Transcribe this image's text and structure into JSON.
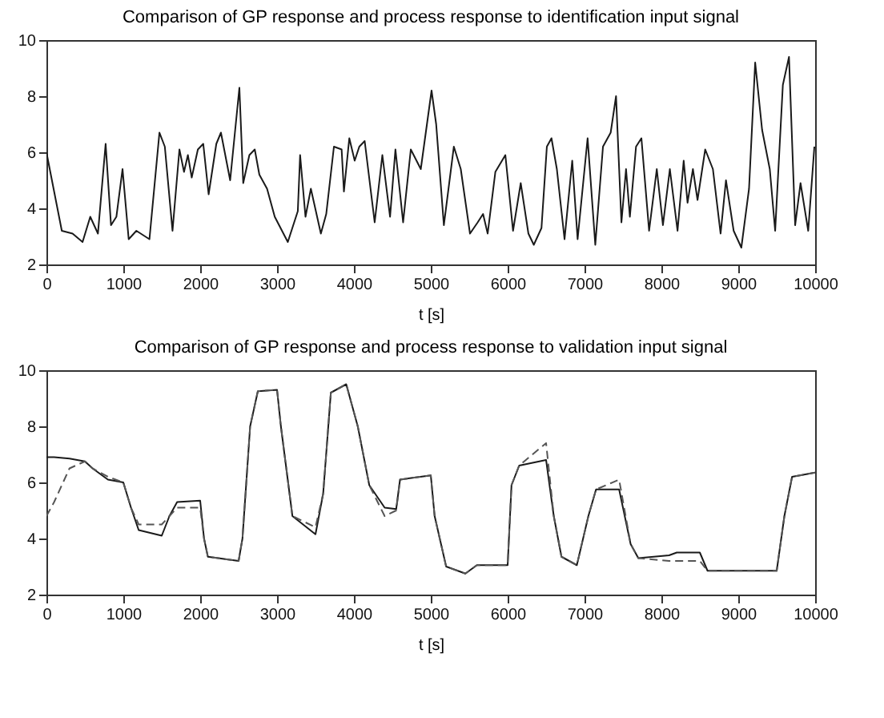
{
  "chart_data": [
    {
      "type": "line",
      "title": "Comparison of GP response and process response to identification input signal",
      "xlabel": "t [s]",
      "xlim": [
        0,
        10000
      ],
      "ylim": [
        2,
        10
      ],
      "xticks": [
        0,
        1000,
        2000,
        3000,
        4000,
        5000,
        6000,
        7000,
        8000,
        9000,
        10000
      ],
      "yticks": [
        2,
        4,
        6,
        8,
        10
      ],
      "grid": false,
      "series": [
        {
          "color": "#1a1a1a",
          "line_style": "solid",
          "x": [
            0,
            100,
            200,
            340,
            470,
            570,
            670,
            770,
            840,
            910,
            990,
            1070,
            1170,
            1340,
            1470,
            1540,
            1640,
            1730,
            1790,
            1840,
            1890,
            1970,
            2040,
            2110,
            2210,
            2270,
            2390,
            2510,
            2560,
            2640,
            2710,
            2770,
            2870,
            2970,
            3140,
            3270,
            3300,
            3370,
            3440,
            3570,
            3640,
            3740,
            3840,
            3870,
            3940,
            4010,
            4070,
            4140,
            4270,
            4370,
            4470,
            4540,
            4640,
            4740,
            4870,
            5010,
            5070,
            5170,
            5300,
            5390,
            5510,
            5610,
            5680,
            5740,
            5840,
            5970,
            6070,
            6170,
            6270,
            6340,
            6440,
            6510,
            6570,
            6640,
            6740,
            6840,
            6910,
            7040,
            7140,
            7240,
            7340,
            7410,
            7480,
            7540,
            7590,
            7670,
            7740,
            7840,
            7940,
            8020,
            8110,
            8210,
            8290,
            8340,
            8410,
            8470,
            8570,
            8670,
            8770,
            8840,
            8940,
            9040,
            9140,
            9220,
            9310,
            9410,
            9480,
            9580,
            9660,
            9740,
            9810,
            9910,
            9990
          ],
          "values": [
            6.0,
            4.6,
            3.2,
            3.1,
            2.8,
            3.7,
            3.1,
            6.3,
            3.4,
            3.7,
            5.4,
            2.9,
            3.2,
            2.9,
            6.7,
            6.2,
            3.2,
            6.1,
            5.3,
            5.9,
            5.1,
            6.1,
            6.3,
            4.5,
            6.3,
            6.7,
            5.0,
            8.3,
            4.9,
            5.9,
            6.1,
            5.2,
            4.7,
            3.7,
            2.8,
            3.9,
            5.9,
            3.7,
            4.7,
            3.1,
            3.8,
            6.2,
            6.1,
            4.6,
            6.5,
            5.7,
            6.2,
            6.4,
            3.5,
            5.9,
            3.7,
            6.1,
            3.5,
            6.1,
            5.4,
            8.2,
            7.0,
            3.4,
            6.2,
            5.4,
            3.1,
            3.5,
            3.8,
            3.1,
            5.3,
            5.9,
            3.2,
            4.9,
            3.1,
            2.7,
            3.3,
            6.2,
            6.5,
            5.4,
            2.9,
            5.7,
            2.9,
            6.5,
            2.7,
            6.2,
            6.7,
            8.0,
            3.5,
            5.4,
            3.7,
            6.2,
            6.5,
            3.2,
            5.4,
            3.4,
            5.4,
            3.2,
            5.7,
            4.2,
            5.4,
            4.3,
            6.1,
            5.4,
            3.1,
            5.0,
            3.2,
            2.6,
            4.7,
            9.2,
            6.8,
            5.4,
            3.2,
            8.4,
            9.4,
            3.4,
            4.9,
            3.2,
            6.2
          ]
        }
      ]
    },
    {
      "type": "line",
      "title": "Comparison of GP response and process response to validation input signal",
      "xlabel": "t [s]",
      "xlim": [
        0,
        10000
      ],
      "ylim": [
        2,
        10
      ],
      "xticks": [
        0,
        1000,
        2000,
        3000,
        4000,
        5000,
        6000,
        7000,
        8000,
        9000,
        10000
      ],
      "yticks": [
        2,
        4,
        6,
        8,
        10
      ],
      "grid": false,
      "x": [
        0,
        100,
        300,
        500,
        600,
        800,
        1000,
        1100,
        1200,
        1500,
        1600,
        1700,
        2000,
        2050,
        2100,
        2500,
        2550,
        2650,
        2750,
        3000,
        3050,
        3200,
        3500,
        3600,
        3700,
        3900,
        4050,
        4200,
        4400,
        4550,
        4600,
        5000,
        5050,
        5200,
        5450,
        5600,
        6000,
        6050,
        6150,
        6500,
        6600,
        6700,
        6900,
        7050,
        7150,
        7450,
        7600,
        7700,
        8100,
        8200,
        8500,
        8600,
        9500,
        9600,
        9700,
        10000
      ],
      "series": [
        {
          "color": "#1a1a1a",
          "line_style": "solid",
          "values": [
            6.9,
            6.9,
            6.85,
            6.75,
            6.5,
            6.1,
            6.0,
            5.1,
            4.3,
            4.1,
            4.8,
            5.3,
            5.35,
            4.0,
            3.35,
            3.2,
            4.0,
            8.0,
            9.25,
            9.3,
            8.0,
            4.8,
            4.15,
            5.6,
            9.2,
            9.5,
            8.0,
            5.9,
            5.1,
            5.05,
            6.1,
            6.25,
            4.8,
            3.0,
            2.75,
            3.05,
            3.05,
            5.9,
            6.6,
            6.8,
            4.8,
            3.35,
            3.05,
            4.8,
            5.75,
            5.75,
            3.8,
            3.3,
            3.4,
            3.5,
            3.5,
            2.85,
            2.85,
            4.8,
            6.2,
            6.35
          ]
        },
        {
          "color": "#555555",
          "line_style": "dashed",
          "values": [
            4.8,
            5.3,
            6.5,
            6.75,
            6.5,
            6.2,
            6.0,
            5.1,
            4.5,
            4.5,
            4.8,
            5.1,
            5.1,
            4.0,
            3.35,
            3.2,
            4.0,
            8.0,
            9.25,
            9.3,
            8.0,
            4.8,
            4.4,
            5.6,
            9.2,
            9.5,
            8.0,
            5.9,
            4.8,
            5.0,
            6.1,
            6.25,
            4.8,
            3.0,
            2.75,
            3.05,
            3.05,
            5.9,
            6.6,
            7.4,
            4.8,
            3.35,
            3.05,
            4.8,
            5.75,
            6.1,
            3.8,
            3.3,
            3.2,
            3.2,
            3.2,
            2.85,
            2.85,
            4.8,
            6.2,
            6.35
          ]
        }
      ]
    }
  ]
}
